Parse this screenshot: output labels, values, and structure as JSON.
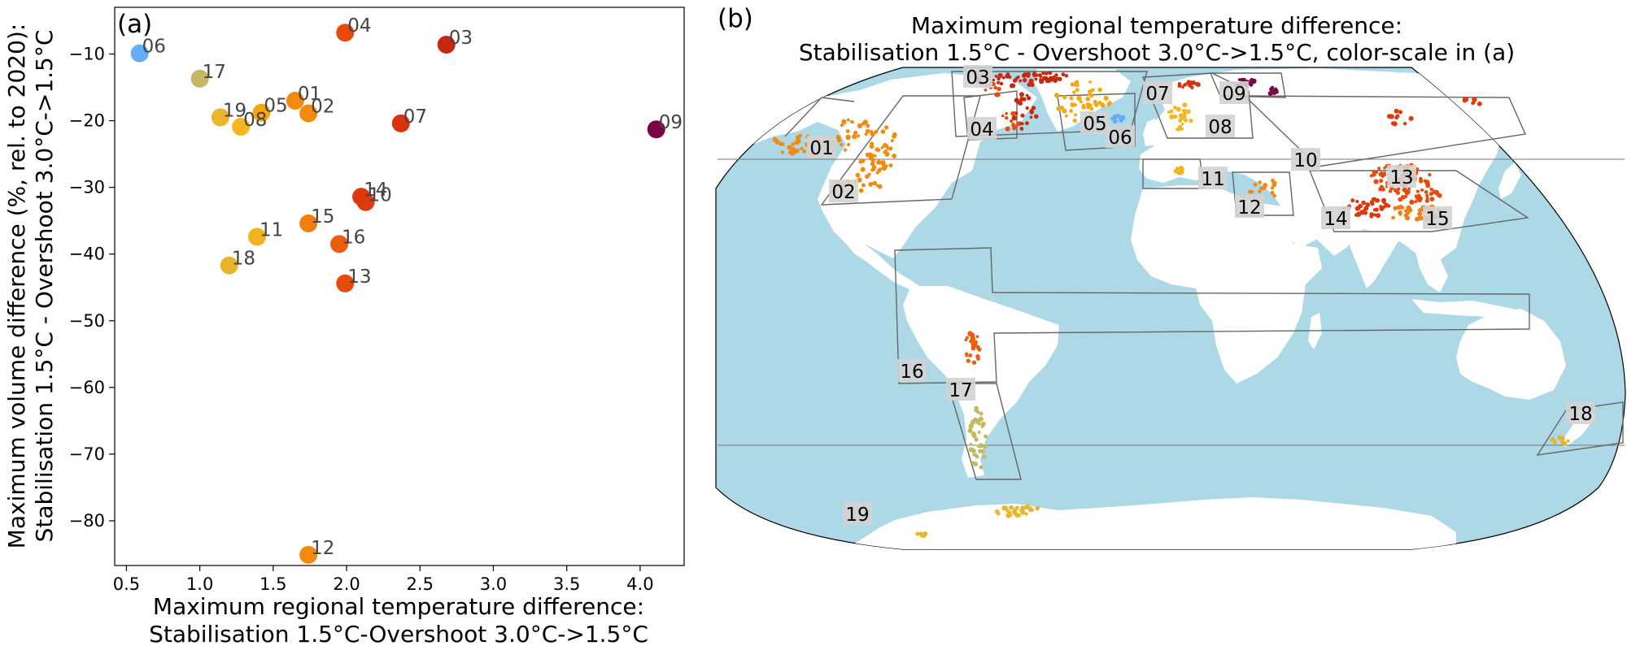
{
  "panels": {
    "a": "(a)",
    "b": "(b)"
  },
  "chart_data": [
    {
      "type": "scatter",
      "title": "",
      "xlabel": [
        "Maximum regional temperature difference:",
        "Stabilisation 1.5°C-Overshoot 3.0°C->1.5°C"
      ],
      "ylabel": [
        "Maximum volume difference (%, rel. to 2020):",
        "Stabilisation 1.5°C - Overshoot 3.0°C->1.5°C"
      ],
      "xlim": [
        0.42,
        4.3
      ],
      "ylim": [
        -86.7,
        -3.0
      ],
      "xticks": [
        0.5,
        1.0,
        1.5,
        2.0,
        2.5,
        3.0,
        3.5,
        4.0
      ],
      "xtick_labels": [
        "0.5",
        "1.0",
        "1.5",
        "2.0",
        "2.5",
        "3.0",
        "3.5",
        "4.0"
      ],
      "yticks": [
        -10,
        -20,
        -30,
        -40,
        -50,
        -60,
        -70,
        -80
      ],
      "ytick_labels": [
        "−10",
        "−20",
        "−30",
        "−40",
        "−50",
        "−60",
        "−70",
        "−80"
      ],
      "grid": false,
      "points": [
        {
          "label": "01",
          "x": 1.65,
          "y": -17.0,
          "color": "#f28a0f"
        },
        {
          "label": "02",
          "x": 1.74,
          "y": -18.9,
          "color": "#f28a0f"
        },
        {
          "label": "03",
          "x": 2.68,
          "y": -8.6,
          "color": "#c8280e"
        },
        {
          "label": "04",
          "x": 1.99,
          "y": -6.8,
          "color": "#e84a0c"
        },
        {
          "label": "05",
          "x": 1.42,
          "y": -18.8,
          "color": "#f5a80c"
        },
        {
          "label": "06",
          "x": 0.59,
          "y": -9.9,
          "color": "#62aef5"
        },
        {
          "label": "07",
          "x": 2.37,
          "y": -20.4,
          "color": "#d8330c"
        },
        {
          "label": "08",
          "x": 1.28,
          "y": -20.9,
          "color": "#f3b820"
        },
        {
          "label": "09",
          "x": 4.11,
          "y": -21.3,
          "color": "#7a0744"
        },
        {
          "label": "10",
          "x": 2.13,
          "y": -32.2,
          "color": "#de3c0c"
        },
        {
          "label": "11",
          "x": 1.39,
          "y": -37.4,
          "color": "#f3b31c"
        },
        {
          "label": "12",
          "x": 1.74,
          "y": -85.1,
          "color": "#f28a0f"
        },
        {
          "label": "13",
          "x": 1.99,
          "y": -44.4,
          "color": "#e84a0c"
        },
        {
          "label": "14",
          "x": 2.1,
          "y": -31.4,
          "color": "#dc380c"
        },
        {
          "label": "15",
          "x": 1.74,
          "y": -35.4,
          "color": "#f27e0f"
        },
        {
          "label": "16",
          "x": 1.95,
          "y": -38.5,
          "color": "#ec5d0d"
        },
        {
          "label": "17",
          "x": 1.0,
          "y": -13.7,
          "color": "#c4b962"
        },
        {
          "label": "18",
          "x": 1.2,
          "y": -41.7,
          "color": "#e8b52a"
        },
        {
          "label": "19",
          "x": 1.14,
          "y": -19.5,
          "color": "#e9b52a"
        }
      ]
    }
  ],
  "map": {
    "title_line1": "Maximum regional temperature difference:",
    "title_line2": "Stabilisation 1.5°C - Overshoot 3.0°C->1.5°C, color-scale in (a)",
    "ocean_color": "#add8e6",
    "land_color": "#ffffff",
    "regions": [
      "01",
      "02",
      "03",
      "04",
      "05",
      "06",
      "07",
      "08",
      "09",
      "10",
      "11",
      "12",
      "13",
      "14",
      "15",
      "16",
      "17",
      "18",
      "19"
    ]
  }
}
